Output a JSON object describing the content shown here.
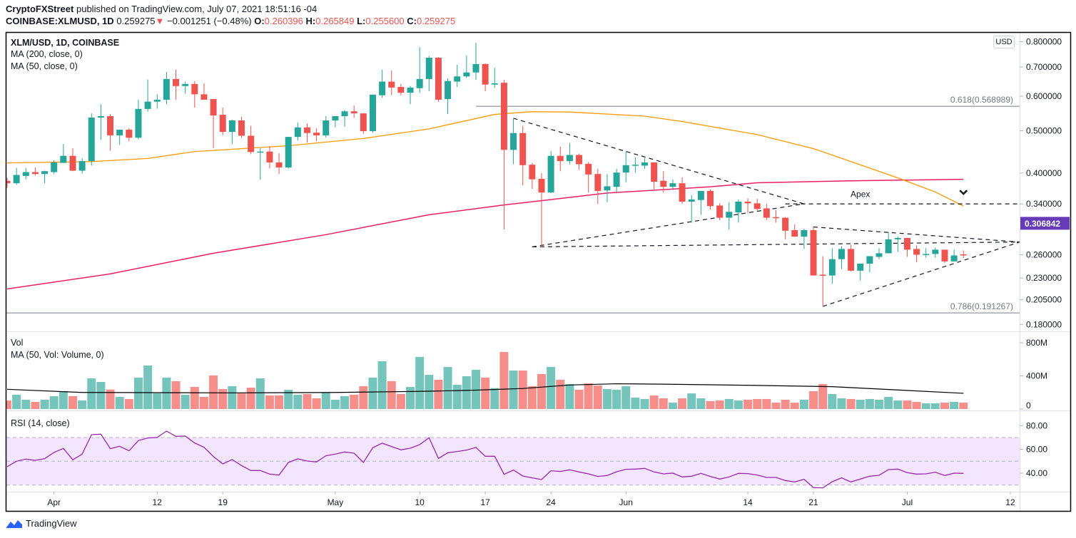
{
  "header": {
    "publisher": "CryptoFXStreet",
    "published_text": "published on TradingView.com, July 07, 2021 18:51:16 -04",
    "symbol": "COINBASE:XLMUSD, 1D",
    "last": "0.259275",
    "direction_icon": "triangle-down-icon",
    "change": "−0.001251 (−0.48%)",
    "o_label": "O:",
    "o": "0.260396",
    "h_label": "H:",
    "h": "0.265849",
    "l_label": "L:",
    "l": "0.255600",
    "c_label": "C:",
    "c": "0.259275"
  },
  "legend": {
    "title": "XLM/USD, 1D, COINBASE",
    "ma200": "MA (200, close, 0)",
    "ma50": "MA (50, close, 0)"
  },
  "volume_panel": {
    "title": "Vol",
    "ma": "MA (50, Vol: Volume, 0)"
  },
  "rsi_panel": {
    "title": "RSI (14, close)"
  },
  "currency_badge": "USD",
  "price_label": {
    "value": "0.306842",
    "color": "#673ab7"
  },
  "footer": {
    "brand": "TradingView",
    "logo_icon": "tradingview-logo-icon"
  },
  "colors": {
    "up": "#26a69a",
    "down": "#ef5350",
    "vol_up": "#76c5bd",
    "vol_down": "#f68e8b",
    "ma50": "#ff9800",
    "ma200": "#e91e63",
    "vol_ma": "#000000",
    "rsi": "#9c27b0",
    "rsi_band": "#f3e5fd",
    "fib": "#787b86"
  },
  "chart_data": {
    "type": "candlestick",
    "price_scale": "log",
    "price_axis_ticks": [
      "0.800000",
      "0.700000",
      "0.600000",
      "0.500000",
      "0.400000",
      "0.340000",
      "0.260000",
      "0.230000",
      "0.205000",
      "0.180000"
    ],
    "price_axis_tick_values": [
      0.8,
      0.7,
      0.6,
      0.5,
      0.4,
      0.34,
      0.26,
      0.23,
      0.205,
      0.18
    ],
    "volume_axis_ticks": [
      {
        "label": "800M",
        "value": 800
      },
      {
        "label": "400M",
        "value": 400
      },
      {
        "label": "0",
        "value": 0
      }
    ],
    "rsi_axis_ticks": [
      {
        "label": "80.00",
        "value": 80
      },
      {
        "label": "60.00",
        "value": 60
      },
      {
        "label": "40.00",
        "value": 40
      }
    ],
    "rsi_levels": [
      70,
      50,
      30
    ],
    "x_axis_ticks": [
      {
        "label": "Apr",
        "date": "2021-04-01"
      },
      {
        "label": "12",
        "date": "2021-04-12"
      },
      {
        "label": "19",
        "date": "2021-04-19"
      },
      {
        "label": "May",
        "date": "2021-05-01"
      },
      {
        "label": "10",
        "date": "2021-05-10"
      },
      {
        "label": "17",
        "date": "2021-05-17"
      },
      {
        "label": "24",
        "date": "2021-05-24"
      },
      {
        "label": "Jun",
        "date": "2021-06-01"
      },
      {
        "label": "14",
        "date": "2021-06-14"
      },
      {
        "label": "21",
        "date": "2021-06-21"
      },
      {
        "label": "Jul",
        "date": "2021-07-01"
      },
      {
        "label": "12",
        "date": "2021-07-12"
      }
    ],
    "dates": [
      "2021-03-27",
      "2021-03-28",
      "2021-03-29",
      "2021-03-30",
      "2021-03-31",
      "2021-04-01",
      "2021-04-02",
      "2021-04-03",
      "2021-04-04",
      "2021-04-05",
      "2021-04-06",
      "2021-04-07",
      "2021-04-08",
      "2021-04-09",
      "2021-04-10",
      "2021-04-11",
      "2021-04-12",
      "2021-04-13",
      "2021-04-14",
      "2021-04-15",
      "2021-04-16",
      "2021-04-17",
      "2021-04-18",
      "2021-04-19",
      "2021-04-20",
      "2021-04-21",
      "2021-04-22",
      "2021-04-23",
      "2021-04-24",
      "2021-04-25",
      "2021-04-26",
      "2021-04-27",
      "2021-04-28",
      "2021-04-29",
      "2021-04-30",
      "2021-05-01",
      "2021-05-02",
      "2021-05-03",
      "2021-05-04",
      "2021-05-05",
      "2021-05-06",
      "2021-05-07",
      "2021-05-08",
      "2021-05-09",
      "2021-05-10",
      "2021-05-11",
      "2021-05-12",
      "2021-05-13",
      "2021-05-14",
      "2021-05-15",
      "2021-05-16",
      "2021-05-17",
      "2021-05-18",
      "2021-05-19",
      "2021-05-20",
      "2021-05-21",
      "2021-05-22",
      "2021-05-23",
      "2021-05-24",
      "2021-05-25",
      "2021-05-26",
      "2021-05-27",
      "2021-05-28",
      "2021-05-29",
      "2021-05-30",
      "2021-05-31",
      "2021-06-01",
      "2021-06-02",
      "2021-06-03",
      "2021-06-04",
      "2021-06-05",
      "2021-06-06",
      "2021-06-07",
      "2021-06-08",
      "2021-06-09",
      "2021-06-10",
      "2021-06-11",
      "2021-06-12",
      "2021-06-13",
      "2021-06-14",
      "2021-06-15",
      "2021-06-16",
      "2021-06-17",
      "2021-06-18",
      "2021-06-19",
      "2021-06-20",
      "2021-06-21",
      "2021-06-22",
      "2021-06-23",
      "2021-06-24",
      "2021-06-25",
      "2021-06-26",
      "2021-06-27",
      "2021-06-28",
      "2021-06-29",
      "2021-06-30",
      "2021-07-01",
      "2021-07-02",
      "2021-07-03",
      "2021-07-04",
      "2021-07-05",
      "2021-07-06",
      "2021-07-07"
    ],
    "ohlc": [
      [
        0.384,
        0.39,
        0.37,
        0.379
      ],
      [
        0.379,
        0.411,
        0.376,
        0.396
      ],
      [
        0.394,
        0.411,
        0.387,
        0.402
      ],
      [
        0.402,
        0.412,
        0.395,
        0.398
      ],
      [
        0.398,
        0.405,
        0.379,
        0.404
      ],
      [
        0.402,
        0.428,
        0.398,
        0.423
      ],
      [
        0.422,
        0.466,
        0.422,
        0.438
      ],
      [
        0.438,
        0.456,
        0.404,
        0.405
      ],
      [
        0.405,
        0.433,
        0.399,
        0.426
      ],
      [
        0.426,
        0.548,
        0.416,
        0.536
      ],
      [
        0.536,
        0.575,
        0.477,
        0.54
      ],
      [
        0.54,
        0.546,
        0.45,
        0.488
      ],
      [
        0.488,
        0.503,
        0.464,
        0.503
      ],
      [
        0.503,
        0.507,
        0.473,
        0.482
      ],
      [
        0.482,
        0.589,
        0.478,
        0.561
      ],
      [
        0.561,
        0.655,
        0.553,
        0.583
      ],
      [
        0.583,
        0.606,
        0.562,
        0.589
      ],
      [
        0.589,
        0.682,
        0.575,
        0.657
      ],
      [
        0.657,
        0.69,
        0.589,
        0.633
      ],
      [
        0.633,
        0.648,
        0.608,
        0.64
      ],
      [
        0.64,
        0.65,
        0.565,
        0.606
      ],
      [
        0.606,
        0.642,
        0.589,
        0.589
      ],
      [
        0.591,
        0.591,
        0.456,
        0.542
      ],
      [
        0.544,
        0.565,
        0.488,
        0.497
      ],
      [
        0.497,
        0.53,
        0.466,
        0.528
      ],
      [
        0.528,
        0.538,
        0.482,
        0.487
      ],
      [
        0.487,
        0.513,
        0.442,
        0.447
      ],
      [
        0.447,
        0.456,
        0.386,
        0.448
      ],
      [
        0.448,
        0.461,
        0.41,
        0.423
      ],
      [
        0.423,
        0.444,
        0.398,
        0.412
      ],
      [
        0.412,
        0.484,
        0.41,
        0.484
      ],
      [
        0.484,
        0.522,
        0.475,
        0.509
      ],
      [
        0.509,
        0.52,
        0.47,
        0.494
      ],
      [
        0.495,
        0.507,
        0.473,
        0.488
      ],
      [
        0.488,
        0.54,
        0.482,
        0.528
      ],
      [
        0.528,
        0.54,
        0.509,
        0.54
      ],
      [
        0.54,
        0.558,
        0.511,
        0.554
      ],
      [
        0.554,
        0.571,
        0.536,
        0.548
      ],
      [
        0.548,
        0.548,
        0.492,
        0.499
      ],
      [
        0.499,
        0.605,
        0.495,
        0.605
      ],
      [
        0.603,
        0.69,
        0.595,
        0.648
      ],
      [
        0.648,
        0.687,
        0.603,
        0.628
      ],
      [
        0.63,
        0.64,
        0.603,
        0.611
      ],
      [
        0.611,
        0.633,
        0.575,
        0.628
      ],
      [
        0.626,
        0.777,
        0.611,
        0.657
      ],
      [
        0.657,
        0.741,
        0.616,
        0.735
      ],
      [
        0.735,
        0.738,
        0.582,
        0.589
      ],
      [
        0.591,
        0.659,
        0.546,
        0.65
      ],
      [
        0.648,
        0.708,
        0.63,
        0.666
      ],
      [
        0.666,
        0.744,
        0.661,
        0.68
      ],
      [
        0.68,
        0.795,
        0.654,
        0.711
      ],
      [
        0.711,
        0.713,
        0.616,
        0.638
      ],
      [
        0.638,
        0.697,
        0.627,
        0.642
      ],
      [
        0.644,
        0.654,
        0.297,
        0.452
      ],
      [
        0.452,
        0.534,
        0.419,
        0.494
      ],
      [
        0.494,
        0.513,
        0.375,
        0.417
      ],
      [
        0.418,
        0.422,
        0.368,
        0.387
      ],
      [
        0.388,
        0.4,
        0.271,
        0.361
      ],
      [
        0.361,
        0.449,
        0.36,
        0.438
      ],
      [
        0.438,
        0.46,
        0.404,
        0.426
      ],
      [
        0.426,
        0.469,
        0.419,
        0.44
      ],
      [
        0.44,
        0.443,
        0.407,
        0.419
      ],
      [
        0.42,
        0.424,
        0.361,
        0.397
      ],
      [
        0.398,
        0.409,
        0.34,
        0.364
      ],
      [
        0.365,
        0.398,
        0.343,
        0.373
      ],
      [
        0.372,
        0.409,
        0.362,
        0.401
      ],
      [
        0.401,
        0.449,
        0.381,
        0.417
      ],
      [
        0.417,
        0.434,
        0.401,
        0.418
      ],
      [
        0.416,
        0.433,
        0.409,
        0.423
      ],
      [
        0.423,
        0.423,
        0.367,
        0.382
      ],
      [
        0.384,
        0.404,
        0.361,
        0.372
      ],
      [
        0.372,
        0.387,
        0.368,
        0.379
      ],
      [
        0.379,
        0.391,
        0.34,
        0.344
      ],
      [
        0.344,
        0.356,
        0.308,
        0.348
      ],
      [
        0.347,
        0.364,
        0.321,
        0.364
      ],
      [
        0.364,
        0.367,
        0.33,
        0.336
      ],
      [
        0.337,
        0.341,
        0.312,
        0.316
      ],
      [
        0.316,
        0.343,
        0.297,
        0.326
      ],
      [
        0.325,
        0.348,
        0.308,
        0.344
      ],
      [
        0.344,
        0.35,
        0.324,
        0.341
      ],
      [
        0.341,
        0.349,
        0.328,
        0.331
      ],
      [
        0.332,
        0.34,
        0.312,
        0.316
      ],
      [
        0.317,
        0.329,
        0.308,
        0.316
      ],
      [
        0.316,
        0.317,
        0.282,
        0.295
      ],
      [
        0.296,
        0.305,
        0.286,
        0.286
      ],
      [
        0.286,
        0.298,
        0.268,
        0.296
      ],
      [
        0.296,
        0.302,
        0.233,
        0.233
      ],
      [
        0.234,
        0.258,
        0.198,
        0.233
      ],
      [
        0.233,
        0.269,
        0.223,
        0.254
      ],
      [
        0.254,
        0.272,
        0.241,
        0.268
      ],
      [
        0.268,
        0.274,
        0.238,
        0.239
      ],
      [
        0.239,
        0.248,
        0.227,
        0.248
      ],
      [
        0.248,
        0.258,
        0.237,
        0.258
      ],
      [
        0.257,
        0.269,
        0.254,
        0.262
      ],
      [
        0.262,
        0.293,
        0.262,
        0.282
      ],
      [
        0.282,
        0.286,
        0.264,
        0.284
      ],
      [
        0.284,
        0.284,
        0.257,
        0.267
      ],
      [
        0.268,
        0.273,
        0.25,
        0.26
      ],
      [
        0.26,
        0.269,
        0.256,
        0.261
      ],
      [
        0.261,
        0.27,
        0.256,
        0.267
      ],
      [
        0.267,
        0.267,
        0.249,
        0.251
      ],
      [
        0.251,
        0.267,
        0.251,
        0.259
      ],
      [
        0.260396,
        0.265849,
        0.2556,
        0.259275
      ]
    ],
    "volume_millions": [
      103,
      172,
      112,
      86,
      112,
      155,
      215,
      155,
      103,
      370,
      327,
      235,
      146,
      121,
      379,
      525,
      189,
      379,
      336,
      172,
      267,
      146,
      405,
      241,
      276,
      189,
      258,
      370,
      164,
      164,
      232,
      172,
      181,
      129,
      198,
      112,
      155,
      172,
      276,
      379,
      577,
      336,
      181,
      267,
      629,
      413,
      353,
      508,
      293,
      396,
      474,
      379,
      253,
      689,
      465,
      465,
      276,
      422,
      508,
      353,
      301,
      232,
      310,
      284,
      241,
      232,
      276,
      138,
      121,
      164,
      129,
      77,
      129,
      189,
      129,
      95,
      103,
      121,
      103,
      112,
      121,
      121,
      77,
      112,
      77,
      112,
      215,
      301,
      181,
      129,
      121,
      112,
      121,
      112,
      146,
      103,
      103,
      86,
      69,
      69,
      77,
      86,
      77
    ],
    "rsi": [
      45.4,
      50,
      51.8,
      50.8,
      52.2,
      57.4,
      60.8,
      51.2,
      56,
      72.4,
      72.8,
      60.6,
      62.6,
      58.8,
      67.4,
      69.6,
      70,
      75.4,
      71,
      71.2,
      65.4,
      61.8,
      54,
      47.8,
      51.4,
      46.4,
      42.2,
      42.2,
      39.2,
      38.4,
      49,
      52,
      50.2,
      49.4,
      54.6,
      56,
      57.8,
      56.8,
      49,
      61.4,
      65.2,
      62.4,
      59.6,
      61,
      64,
      69.8,
      52.4,
      57.2,
      58.2,
      59.4,
      61.6,
      54.2,
      54.2,
      39,
      42.6,
      37.6,
      36,
      34.6,
      42,
      41.4,
      42.8,
      41,
      39.4,
      37.2,
      38,
      41.2,
      43.2,
      43.4,
      44,
      41,
      39.4,
      40,
      36.8,
      37.4,
      39.8,
      37.2,
      35,
      36.8,
      39.8,
      39.6,
      38.4,
      36.4,
      36.4,
      33.8,
      32.6,
      34.8,
      27.8,
      27.6,
      32.8,
      36,
      32.6,
      35,
      37.4,
      38.2,
      43,
      43.4,
      40.4,
      39.2,
      39.4,
      40.8,
      38,
      40,
      39.8
    ],
    "ma50": [
      [
        "2021-03-27",
        0.422
      ],
      [
        "2021-04-05",
        0.425
      ],
      [
        "2021-04-11",
        0.432
      ],
      [
        "2021-04-16",
        0.448
      ],
      [
        "2021-04-21",
        0.455
      ],
      [
        "2021-04-26",
        0.462
      ],
      [
        "2021-05-04",
        0.48
      ],
      [
        "2021-05-11",
        0.505
      ],
      [
        "2021-05-18",
        0.545
      ],
      [
        "2021-05-22",
        0.553
      ],
      [
        "2021-05-26",
        0.552
      ],
      [
        "2021-06-03",
        0.54
      ],
      [
        "2021-06-07",
        0.525
      ],
      [
        "2021-06-15",
        0.49
      ],
      [
        "2021-06-21",
        0.455
      ],
      [
        "2021-06-25",
        0.425
      ],
      [
        "2021-06-30",
        0.39
      ],
      [
        "2021-07-04",
        0.362
      ],
      [
        "2021-07-07",
        0.336
      ]
    ],
    "ma200": [
      [
        "2021-03-27",
        0.217
      ],
      [
        "2021-04-07",
        0.235
      ],
      [
        "2021-04-18",
        0.262
      ],
      [
        "2021-04-30",
        0.289
      ],
      [
        "2021-05-11",
        0.321
      ],
      [
        "2021-05-19",
        0.338
      ],
      [
        "2021-05-30",
        0.36
      ],
      [
        "2021-06-10",
        0.372
      ],
      [
        "2021-06-15",
        0.38
      ],
      [
        "2021-06-25",
        0.384
      ],
      [
        "2021-07-07",
        0.387
      ]
    ],
    "volume_ma50": [
      [
        "2021-03-27",
        238
      ],
      [
        "2021-04-04",
        200
      ],
      [
        "2021-04-20",
        195
      ],
      [
        "2021-05-01",
        200
      ],
      [
        "2021-05-06",
        207
      ],
      [
        "2021-05-11",
        215
      ],
      [
        "2021-05-16",
        228
      ],
      [
        "2021-05-21",
        248
      ],
      [
        "2021-05-26",
        290
      ],
      [
        "2021-05-31",
        305
      ],
      [
        "2021-06-05",
        300
      ],
      [
        "2021-06-15",
        285
      ],
      [
        "2021-06-23",
        270
      ],
      [
        "2021-06-30",
        230
      ],
      [
        "2021-07-07",
        190
      ]
    ],
    "fib_levels": [
      {
        "label": "0.618(0.568989)",
        "price": 0.568989,
        "from": "2021-05-16"
      },
      {
        "label": "0.786(0.191267)",
        "price": 0.191267,
        "from": "2021-03-26"
      }
    ],
    "trend_lines": [
      {
        "from": [
          "2021-05-20",
          0.534
        ],
        "to": [
          "2021-06-20",
          0.34
        ]
      },
      {
        "from": [
          "2021-05-22",
          0.271
        ],
        "to": [
          "2021-06-20",
          0.34
        ]
      },
      {
        "from": [
          "2021-05-22",
          0.271
        ],
        "to": [
          "2021-07-13",
          0.278
        ]
      },
      {
        "from": [
          "2021-06-18",
          0.34
        ],
        "to": [
          "2021-07-13",
          0.34
        ]
      },
      {
        "from": [
          "2021-06-21",
          0.301
        ],
        "to": [
          "2021-07-13",
          0.278
        ]
      },
      {
        "from": [
          "2021-06-22",
          0.198
        ],
        "to": [
          "2021-07-13",
          0.278
        ]
      }
    ],
    "annotations": [
      {
        "text": "Apex",
        "date": "2021-06-26",
        "price": 0.358
      }
    ],
    "markers": [
      {
        "icon": "chevron-down-icon",
        "date": "2021-07-07",
        "price": 0.361
      }
    ]
  }
}
